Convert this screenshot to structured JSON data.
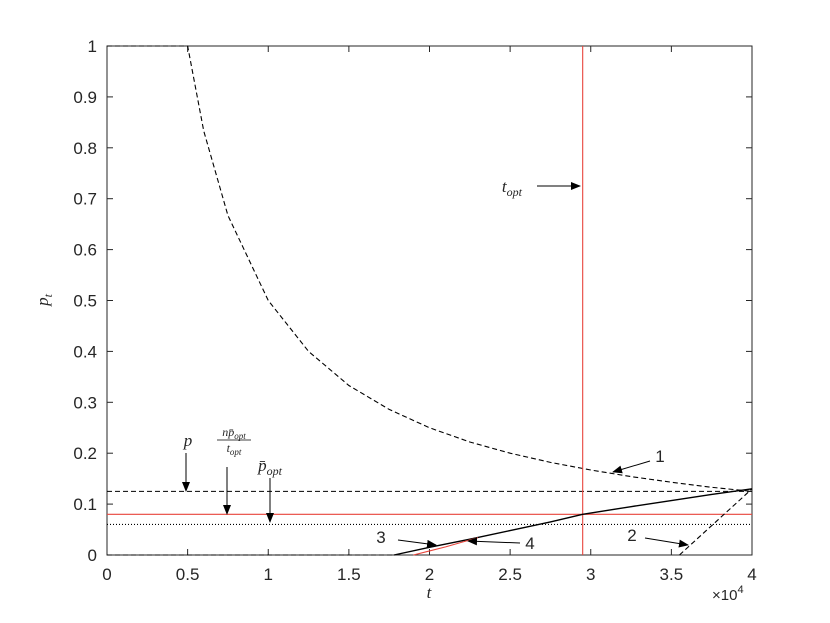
{
  "chart_data": {
    "type": "line",
    "xlabel": "t",
    "ylabel": {
      "text": "p",
      "sub": "t"
    },
    "x_exponent": {
      "base": "×10",
      "exp": "4"
    },
    "xlim": [
      0,
      4
    ],
    "ylim": [
      0,
      1
    ],
    "xticks": [
      0,
      0.5,
      1,
      1.5,
      2,
      2.5,
      3,
      3.5,
      4
    ],
    "yticks": [
      0,
      0.1,
      0.2,
      0.3,
      0.4,
      0.5,
      0.6,
      0.7,
      0.8,
      0.9,
      1
    ],
    "series": [
      {
        "color": "#000000",
        "dash": "dashed",
        "x": [
          0,
          0.5,
          0.6,
          0.75,
          1,
          1.25,
          1.5,
          1.75,
          2,
          2.25,
          2.5,
          2.75,
          3,
          3.25,
          3.5,
          3.75,
          4
        ],
        "values": [
          1,
          1,
          0.833,
          0.667,
          0.5,
          0.4,
          0.333,
          0.286,
          0.25,
          0.222,
          0.2,
          0.182,
          0.167,
          0.154,
          0.143,
          0.133,
          0.125
        ]
      },
      {
        "color": "#000000",
        "dash": "dashed",
        "x": [
          0,
          4
        ],
        "values": [
          0.125,
          0.125
        ]
      },
      {
        "color": "#e8453c",
        "dash": "solid",
        "x": [
          0,
          4
        ],
        "values": [
          0.08,
          0.08
        ]
      },
      {
        "color": "#000000",
        "dash": "dotted",
        "x": [
          0,
          4
        ],
        "values": [
          0.06,
          0.06
        ]
      },
      {
        "color": "#e8453c",
        "dash": "solid",
        "x": [
          2.95,
          2.95
        ],
        "values": [
          0,
          1
        ]
      },
      {
        "color": "#000000",
        "dash": "dashed",
        "x": [
          0,
          1.78
        ],
        "values": [
          0,
          0
        ]
      },
      {
        "color": "#000000",
        "dash": "solid",
        "x": [
          1.78,
          2,
          2.25,
          2.5,
          2.75,
          2.95,
          3.25,
          3.5,
          3.75,
          4
        ],
        "values": [
          0,
          0.015,
          0.031,
          0.048,
          0.065,
          0.08,
          0.095,
          0.107,
          0.119,
          0.13
        ]
      },
      {
        "color": "#e8453c",
        "dash": "solid",
        "x": [
          1.9,
          2,
          2.1,
          2.2,
          2.3
        ],
        "values": [
          0,
          0.008,
          0.016,
          0.025,
          0.034
        ]
      },
      {
        "color": "#000000",
        "dash": "dashed",
        "x": [
          3.55,
          4
        ],
        "values": [
          0,
          0.13
        ]
      }
    ],
    "annotations": [
      {
        "text": "1"
      },
      {
        "text": "2"
      },
      {
        "text": "3"
      },
      {
        "text": "4"
      },
      {
        "text": "p"
      },
      {
        "numerator": {
          "text": "np̄",
          "sub": "opt"
        },
        "denominator": {
          "text": "t",
          "sub": "opt"
        }
      },
      {
        "text": "p̄",
        "sub": "opt"
      },
      {
        "text": "t",
        "sub": "opt"
      }
    ]
  }
}
